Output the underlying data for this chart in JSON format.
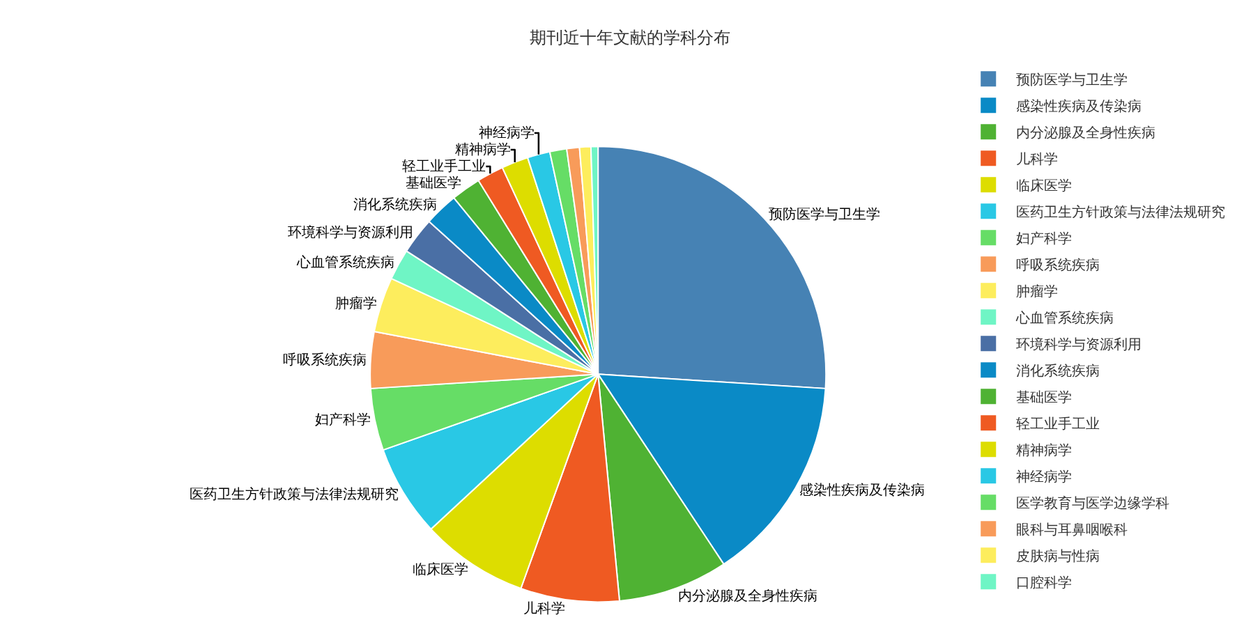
{
  "chart_data": {
    "type": "pie",
    "title": "期刊近十年文献的学科分布",
    "categories": [
      "预防医学与卫生学",
      "感染性疾病及传染病",
      "内分泌腺及全身性疾病",
      "儿科学",
      "临床医学",
      "医药卫生方针政策与法律法规研究",
      "妇产科学",
      "呼吸系统疾病",
      "肿瘤学",
      "心血管系统疾病",
      "环境科学与资源利用",
      "消化系统疾病",
      "基础医学",
      "轻工业手工业",
      "精神病学",
      "神经病学",
      "医学教育与医学边缘学科",
      "眼科与耳鼻咽喉科",
      "皮肤病与性病",
      "口腔科学"
    ],
    "values": [
      26,
      14.7,
      7.8,
      7,
      7.6,
      6.5,
      4.4,
      4,
      3.9,
      2.2,
      2.6,
      2.4,
      2.1,
      1.9,
      1.9,
      1.6,
      1.2,
      0.9,
      0.8,
      0.5
    ],
    "colors": [
      "#4682b4",
      "#0a8ac6",
      "#4fb233",
      "#ef5a22",
      "#dddd00",
      "#29c8e5",
      "#66dd66",
      "#f89b5a",
      "#fded5d",
      "#6ff5c5",
      "#4a6fa5",
      "#0a8ac6",
      "#4fb233",
      "#ef5a22",
      "#dddd00",
      "#29c8e5",
      "#66dd66",
      "#f89b5a",
      "#fded5d",
      "#6ff5c5"
    ],
    "value_labels": [
      "预防医学与卫生学",
      "感染性疾病及传染病",
      "内分泌腺及全身性疾病",
      "儿科学",
      "临床医学",
      "医药卫生方针政策与法律法规研究",
      "妇产科学",
      "呼吸系统疾病",
      "肿瘤学",
      "心血管系统疾病",
      "环境科学与资源利用",
      "消化系统疾病",
      "基础医学",
      "轻工业手工业",
      "精神病学",
      "神经病学",
      null,
      null,
      null,
      null
    ],
    "legend": "right"
  }
}
